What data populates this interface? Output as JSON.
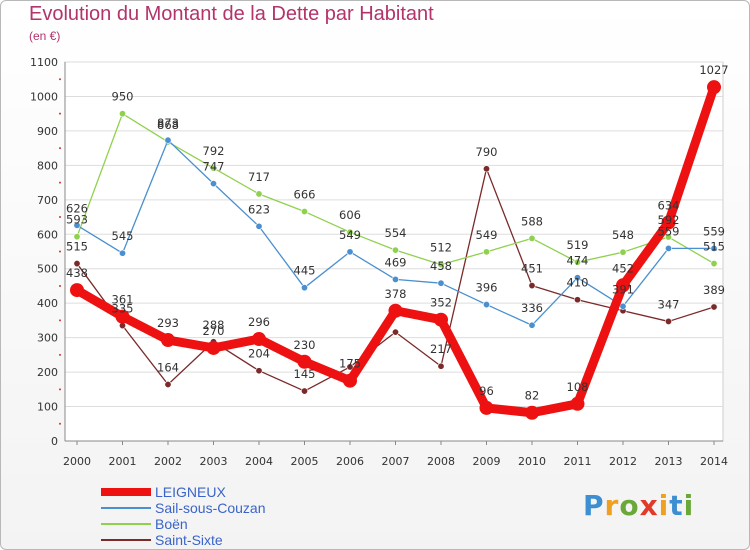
{
  "title": "Evolution du Montant de la Dette par Habitant",
  "unit_label": "(en €)",
  "logo": {
    "text": "Proxiti",
    "letters": [
      {
        "ch": "P",
        "color": "#3d8fd1"
      },
      {
        "ch": "r",
        "color": "#f0a020"
      },
      {
        "ch": "o",
        "color": "#6aa83a"
      },
      {
        "ch": "x",
        "color": "#e03a2a"
      },
      {
        "ch": "i",
        "color": "#f0a020"
      },
      {
        "ch": "t",
        "color": "#3d8fd1"
      },
      {
        "ch": "i",
        "color": "#6aa83a"
      }
    ]
  },
  "chart_data": {
    "type": "line",
    "x": [
      "2000",
      "2001",
      "2002",
      "2003",
      "2004",
      "2005",
      "2006",
      "2007",
      "2008",
      "2009",
      "2010",
      "2011",
      "2012",
      "2013",
      "2014"
    ],
    "ylim": [
      0,
      1100
    ],
    "yticks": [
      0,
      100,
      200,
      300,
      400,
      500,
      600,
      700,
      800,
      900,
      1000,
      1100
    ],
    "grid": true,
    "legend_position": "bottom-left",
    "series": [
      {
        "name": "Saint-Sixte",
        "color": "#7a2a2a",
        "values": [
          515,
          335,
          164,
          288,
          204,
          145,
          215,
          316,
          217,
          790,
          451,
          410,
          378,
          347,
          389
        ],
        "labels": [
          "515",
          "335",
          "164",
          "288",
          "204",
          "145",
          "",
          "",
          "217",
          "790",
          "451",
          "410",
          "",
          "347",
          "389"
        ]
      },
      {
        "name": "Boën",
        "color": "#8fd14f",
        "values": [
          593,
          950,
          868,
          792,
          717,
          666,
          606,
          554,
          512,
          549,
          588,
          519,
          548,
          592,
          515
        ],
        "labels": [
          "593",
          "950",
          "868",
          "792",
          "717",
          "666",
          "606",
          "554",
          "512",
          "549",
          "588",
          "519",
          "548",
          "592",
          "515"
        ]
      },
      {
        "name": "Sail-sous-Couzan",
        "color": "#4a8fcf",
        "values": [
          626,
          545,
          873,
          747,
          623,
          445,
          549,
          469,
          458,
          396,
          336,
          474,
          391,
          559,
          559
        ],
        "labels": [
          "626",
          "545",
          "873",
          "747",
          "623",
          "445",
          "549",
          "469",
          "458",
          "396",
          "336",
          "474",
          "391",
          "559",
          "559"
        ]
      },
      {
        "name": "LEIGNEUX",
        "color": "#ee1111",
        "values": [
          438,
          361,
          293,
          270,
          296,
          230,
          175,
          378,
          352,
          96,
          82,
          108,
          452,
          634,
          1027
        ],
        "labels": [
          "438",
          "361",
          "293",
          "270",
          "296",
          "230",
          "175",
          "378",
          "352",
          "96",
          "82",
          "108",
          "452",
          "634",
          "1027"
        ]
      }
    ],
    "legend_order": [
      "LEIGNEUX",
      "Sail-sous-Couzan",
      "Boën",
      "Saint-Sixte"
    ]
  }
}
